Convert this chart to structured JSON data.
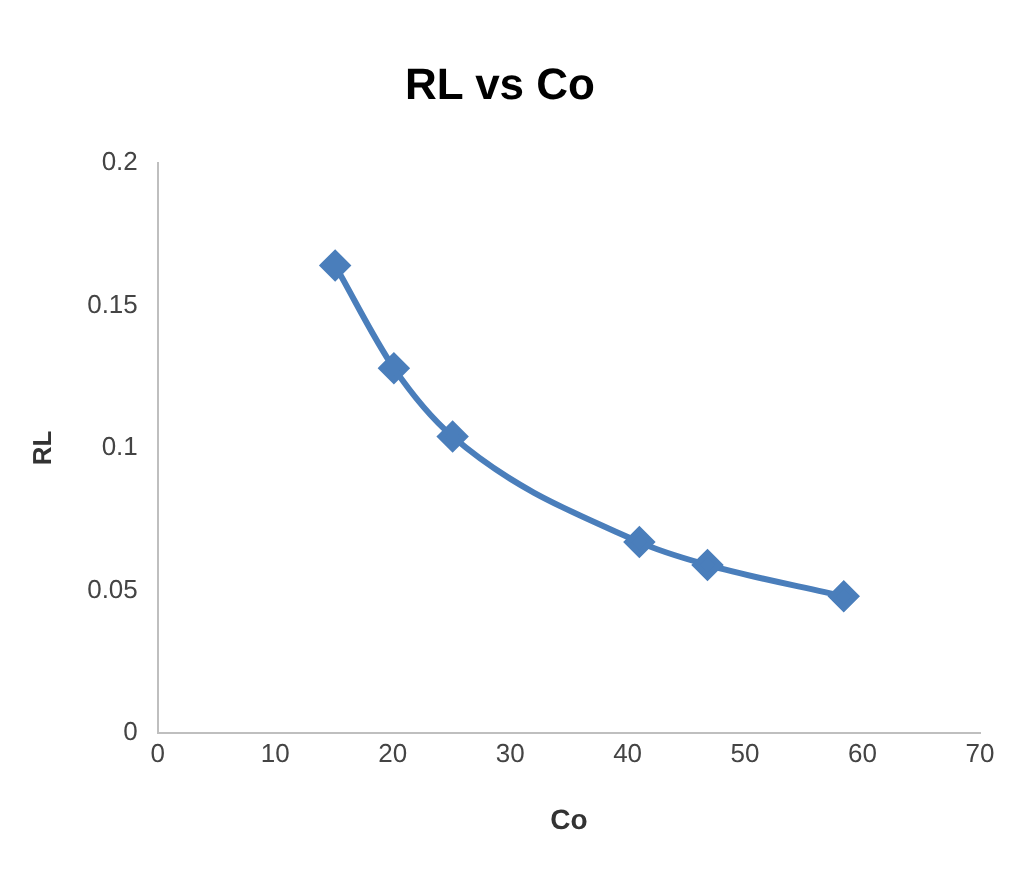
{
  "chart_data": {
    "type": "line",
    "title": "RL vs Co",
    "xlabel": "Co",
    "ylabel": "RL",
    "x": [
      15.1,
      20.1,
      25.1,
      41,
      46.8,
      58.4
    ],
    "series": [
      {
        "color": "#4a7ebb",
        "values": [
          0.164,
          0.128,
          0.104,
          0.067,
          0.059,
          0.048
        ]
      }
    ],
    "xlim": [
      0,
      70
    ],
    "xticks": [
      0,
      10,
      20,
      30,
      40,
      50,
      60,
      70
    ],
    "ylim": [
      0,
      0.2
    ],
    "yticks": [
      0,
      0.05,
      0.1,
      0.15,
      0.2
    ],
    "grid": false,
    "legend": false,
    "marker": "diamond",
    "line_style": "solid"
  }
}
